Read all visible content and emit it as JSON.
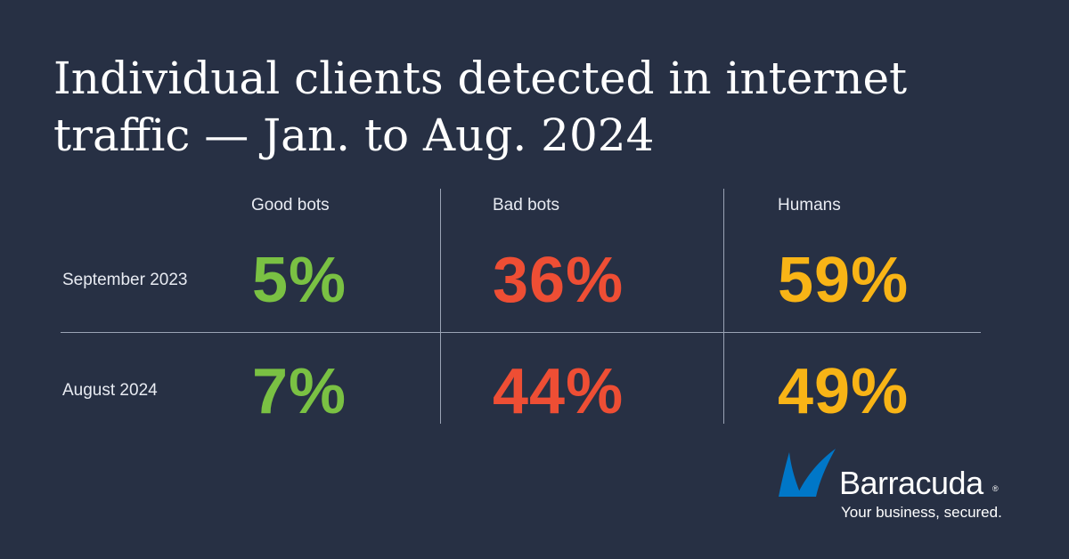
{
  "title": "Individual clients detected in internet traffic — Jan. to Aug. 2024",
  "colors": {
    "background": "#273044",
    "good_bots": "#7ac143",
    "bad_bots": "#ee4e34",
    "humans": "#f8b416",
    "logo_blue": "#0077c8"
  },
  "chart_data": {
    "type": "table",
    "title": "Individual clients detected in internet traffic — Jan. to Aug. 2024",
    "columns": [
      "Good bots",
      "Bad bots",
      "Humans"
    ],
    "rows": [
      {
        "label": "September 2023",
        "values": [
          "5%",
          "36%",
          "59%"
        ]
      },
      {
        "label": "August 2024",
        "values": [
          "7%",
          "44%",
          "49%"
        ]
      }
    ],
    "unit": "%"
  },
  "logo": {
    "name": "Barracuda",
    "registered": "®",
    "tagline": "Your business, secured.",
    "icon": "shark-fin-icon"
  }
}
